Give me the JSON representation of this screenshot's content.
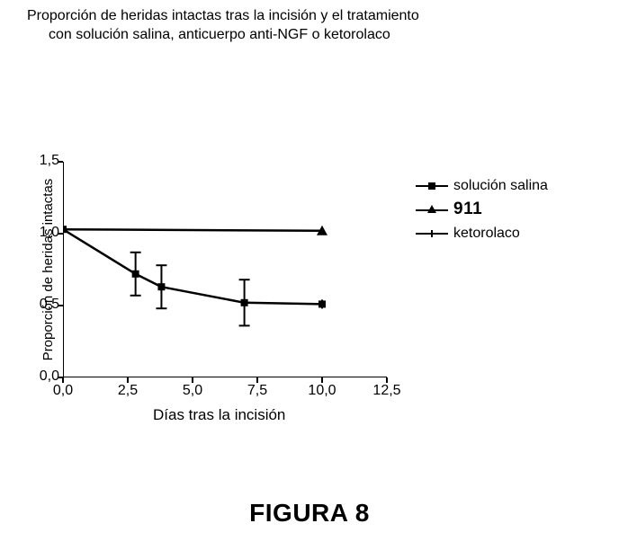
{
  "title": {
    "line1": "Proporción de heridas intactas tras la incisión y el tratamiento",
    "line2": "con solución salina, anticuerpo anti-NGF o ketorolaco"
  },
  "ylabel": "Proporción de heridas intactas",
  "xlabel": "Días tras la incisión",
  "figure_caption": "FIGURA 8",
  "axes": {
    "x": {
      "min": 0.0,
      "max": 12.5,
      "ticks": [
        0.0,
        2.5,
        5.0,
        7.5,
        10.0,
        12.5
      ],
      "tick_labels": [
        "0,0",
        "2,5",
        "5,0",
        "7,5",
        "10,0",
        "12,5"
      ]
    },
    "y": {
      "min": 0.0,
      "max": 1.5,
      "ticks": [
        0.0,
        0.5,
        1.0,
        1.5
      ],
      "tick_labels": [
        "0,0",
        "0,5",
        "1,0",
        "1,5"
      ]
    }
  },
  "colors": {
    "background": "#ffffff",
    "axis": "#000000",
    "text": "#000000",
    "series": "#000000"
  },
  "line_width": 2.5,
  "legend": {
    "position": "right",
    "items": [
      {
        "label": "solución salina",
        "marker": "square"
      },
      {
        "label": "911",
        "marker": "triangle"
      },
      {
        "label": "ketorolaco",
        "marker": "dash"
      }
    ]
  },
  "series": {
    "saline_ketorolac_curve": {
      "type": "line",
      "marker": "square",
      "points": [
        {
          "x": 0.0,
          "y": 1.03
        },
        {
          "x": 2.8,
          "y": 0.72,
          "err": 0.15
        },
        {
          "x": 3.8,
          "y": 0.63,
          "err": 0.15
        },
        {
          "x": 7.0,
          "y": 0.52,
          "err": 0.16
        },
        {
          "x": 10.0,
          "y": 0.51
        }
      ]
    },
    "nine_eleven": {
      "type": "line",
      "marker": "triangle",
      "points": [
        {
          "x": 0.0,
          "y": 1.03
        },
        {
          "x": 10.0,
          "y": 1.02
        }
      ]
    }
  }
}
